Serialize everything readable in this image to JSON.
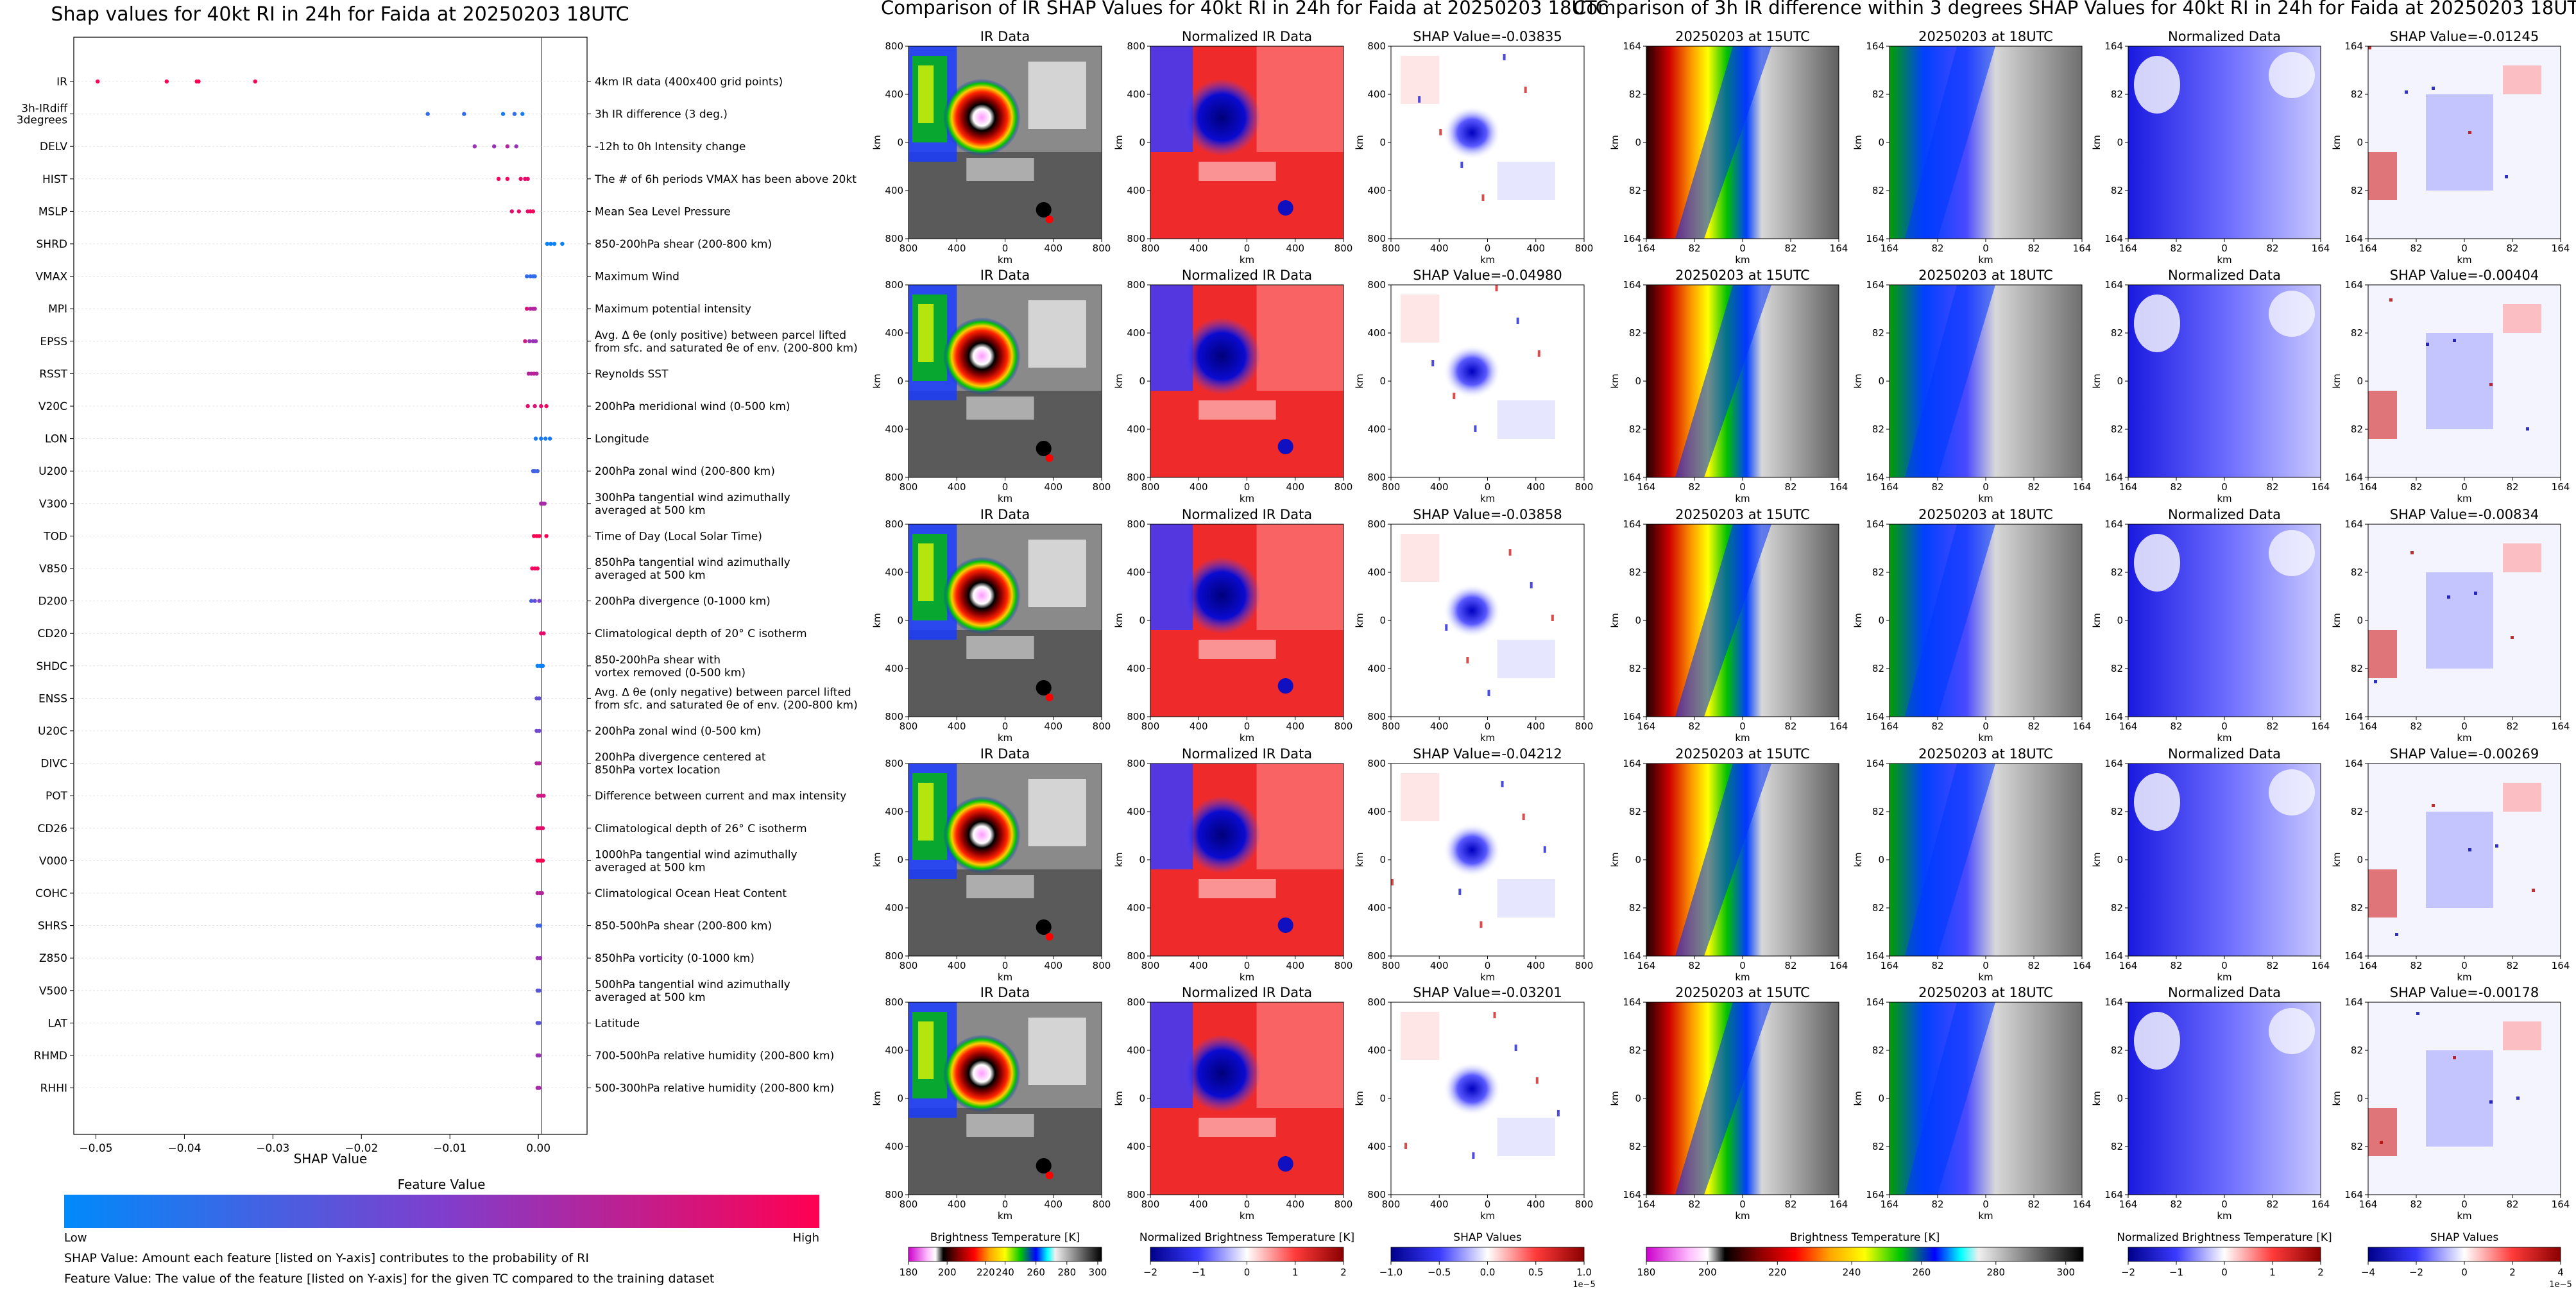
{
  "chart_data": [
    {
      "type": "scatter",
      "title": "Shap values for 40kt RI in 24h for Faida at 20250203 18UTC",
      "xlabel": "SHAP Value",
      "ylabel": "",
      "xlim": [
        -0.0525,
        0.0055
      ],
      "xticks": [
        -0.05,
        -0.04,
        -0.03,
        -0.02,
        -0.01,
        0.0
      ],
      "xtick_labels": [
        "−0.05",
        "−0.04",
        "−0.03",
        "−0.02",
        "−0.01",
        "0.00"
      ],
      "features": [
        {
          "name": "IR",
          "desc": "4km IR data (400x400 grid points)",
          "points": [
            {
              "x": -0.0498,
              "v": 1
            },
            {
              "x": -0.042,
              "v": 1
            },
            {
              "x": -0.0386,
              "v": 1
            },
            {
              "x": -0.0384,
              "v": 1
            },
            {
              "x": -0.032,
              "v": 1
            }
          ]
        },
        {
          "name": "3h-IRdiff\n3degrees",
          "desc": "3h IR difference (3 deg.)",
          "points": [
            {
              "x": -0.0125,
              "v": 0.2
            },
            {
              "x": -0.0084,
              "v": 0.2
            },
            {
              "x": -0.004,
              "v": 0.1
            },
            {
              "x": -0.0027,
              "v": 0.2
            },
            {
              "x": -0.0018,
              "v": 0.1
            }
          ]
        },
        {
          "name": "DELV",
          "desc": "-12h to 0h Intensity change",
          "points": [
            {
              "x": -0.0072,
              "v": 0.6
            },
            {
              "x": -0.005,
              "v": 0.6
            },
            {
              "x": -0.0035,
              "v": 0.7
            },
            {
              "x": -0.0025,
              "v": 0.6
            }
          ]
        },
        {
          "name": "HIST",
          "desc": "The # of 6h periods VMAX has been above 20kt",
          "points": [
            {
              "x": -0.0045,
              "v": 0.95
            },
            {
              "x": -0.0035,
              "v": 0.95
            },
            {
              "x": -0.002,
              "v": 0.9
            },
            {
              "x": -0.0015,
              "v": 0.9
            },
            {
              "x": -0.0012,
              "v": 0.9
            }
          ]
        },
        {
          "name": "MSLP",
          "desc": "Mean Sea Level Pressure",
          "points": [
            {
              "x": -0.003,
              "v": 0.9
            },
            {
              "x": -0.0022,
              "v": 0.9
            },
            {
              "x": -0.0012,
              "v": 0.9
            },
            {
              "x": -0.0009,
              "v": 0.95
            },
            {
              "x": -0.0006,
              "v": 0.95
            }
          ]
        },
        {
          "name": "SHRD",
          "desc": "850-200hPa shear (200-800 km)",
          "points": [
            {
              "x": 0.001,
              "v": 0.05
            },
            {
              "x": 0.0014,
              "v": 0.05
            },
            {
              "x": 0.0018,
              "v": 0.05
            },
            {
              "x": 0.0027,
              "v": 0.05
            }
          ]
        },
        {
          "name": "VMAX",
          "desc": "Maximum Wind",
          "points": [
            {
              "x": -0.0013,
              "v": 0.2
            },
            {
              "x": -0.0009,
              "v": 0.2
            },
            {
              "x": -0.0006,
              "v": 0.2
            },
            {
              "x": -0.0004,
              "v": 0.2
            }
          ]
        },
        {
          "name": "MPI",
          "desc": "Maximum potential intensity",
          "points": [
            {
              "x": -0.0013,
              "v": 0.85
            },
            {
              "x": -0.0009,
              "v": 0.7
            },
            {
              "x": -0.0006,
              "v": 0.7
            },
            {
              "x": -0.0004,
              "v": 0.7
            }
          ]
        },
        {
          "name": "EPSS",
          "desc": "Avg. Δ θe (only positive) between parcel lifted\nfrom sfc. and saturated θe of env. (200-800 km)",
          "points": [
            {
              "x": -0.0015,
              "v": 0.8
            },
            {
              "x": -0.001,
              "v": 0.6
            },
            {
              "x": -0.0006,
              "v": 0.6
            },
            {
              "x": -0.0003,
              "v": 0.6
            }
          ]
        },
        {
          "name": "RSST",
          "desc": "Reynolds SST",
          "points": [
            {
              "x": -0.0011,
              "v": 0.7
            },
            {
              "x": -0.0008,
              "v": 0.7
            },
            {
              "x": -0.0005,
              "v": 0.75
            },
            {
              "x": -0.0002,
              "v": 0.7
            }
          ]
        },
        {
          "name": "V20C",
          "desc": "200hPa meridional wind (0-500 km)",
          "points": [
            {
              "x": -0.0012,
              "v": 0.9
            },
            {
              "x": -0.0004,
              "v": 0.85
            },
            {
              "x": 0.0003,
              "v": 0.9
            },
            {
              "x": 0.0009,
              "v": 0.95
            }
          ]
        },
        {
          "name": "LON",
          "desc": "Longitude",
          "points": [
            {
              "x": -0.0003,
              "v": 0.1
            },
            {
              "x": 0.0003,
              "v": 0.1
            },
            {
              "x": 0.0008,
              "v": 0.1
            },
            {
              "x": 0.0013,
              "v": 0.1
            }
          ]
        },
        {
          "name": "U200",
          "desc": "200hPa zonal wind (200-800 km)",
          "points": [
            {
              "x": -0.0006,
              "v": 0.25
            },
            {
              "x": -0.0004,
              "v": 0.25
            },
            {
              "x": -0.0001,
              "v": 0.25
            }
          ]
        },
        {
          "name": "V300",
          "desc": "300hPa tangential wind azimuthally\naveraged at 500 km",
          "points": [
            {
              "x": 0.0003,
              "v": 0.65
            },
            {
              "x": 0.0005,
              "v": 0.65
            },
            {
              "x": 0.0007,
              "v": 0.65
            }
          ]
        },
        {
          "name": "TOD",
          "desc": "Time of Day (Local Solar Time)",
          "points": [
            {
              "x": -0.0005,
              "v": 1
            },
            {
              "x": -0.0002,
              "v": 1
            },
            {
              "x": 0.0001,
              "v": 1
            },
            {
              "x": 0.0009,
              "v": 1
            }
          ]
        },
        {
          "name": "V850",
          "desc": "850hPa tangential wind azimuthally\naveraged at 500 km",
          "points": [
            {
              "x": -0.0007,
              "v": 0.95
            },
            {
              "x": -0.0004,
              "v": 0.95
            },
            {
              "x": -0.0001,
              "v": 0.95
            }
          ]
        },
        {
          "name": "D200",
          "desc": "200hPa divergence (0-1000 km)",
          "points": [
            {
              "x": -0.0008,
              "v": 0.3
            },
            {
              "x": -0.0004,
              "v": 0.4
            },
            {
              "x": 0.0001,
              "v": 0.5
            }
          ]
        },
        {
          "name": "CD20",
          "desc": "Climatological depth of 20° C isotherm",
          "points": [
            {
              "x": 0.0003,
              "v": 0.9
            },
            {
              "x": 0.0006,
              "v": 0.9
            }
          ]
        },
        {
          "name": "SHDC",
          "desc": "850-200hPa shear with\nvortex removed (0-500 km)",
          "points": [
            {
              "x": -0.0001,
              "v": 0.05
            },
            {
              "x": 0.0002,
              "v": 0.05
            },
            {
              "x": 0.0005,
              "v": 0.05
            }
          ]
        },
        {
          "name": "ENSS",
          "desc": "Avg. Δ θe (only negative) between parcel lifted\nfrom sfc. and saturated θe of env. (200-800 km)",
          "points": [
            {
              "x": -0.0002,
              "v": 0.4
            },
            {
              "x": 0.0001,
              "v": 0.4
            }
          ]
        },
        {
          "name": "U20C",
          "desc": "200hPa zonal wind (0-500 km)",
          "points": [
            {
              "x": -0.0002,
              "v": 0.45
            },
            {
              "x": 0.0001,
              "v": 0.45
            }
          ]
        },
        {
          "name": "DIVC",
          "desc": "200hPa divergence centered at\n850hPa vortex location",
          "points": [
            {
              "x": -0.0002,
              "v": 0.7
            },
            {
              "x": 0.0001,
              "v": 0.7
            }
          ]
        },
        {
          "name": "POT",
          "desc": "Difference between current and max intensity",
          "points": [
            {
              "x": 0.0,
              "v": 0.8
            },
            {
              "x": 0.0003,
              "v": 0.8
            },
            {
              "x": 0.0006,
              "v": 0.8
            }
          ]
        },
        {
          "name": "CD26",
          "desc": "Climatological depth of 26° C isotherm",
          "points": [
            {
              "x": -0.0001,
              "v": 0.9
            },
            {
              "x": 0.0002,
              "v": 0.9
            },
            {
              "x": 0.0005,
              "v": 0.9
            }
          ]
        },
        {
          "name": "V000",
          "desc": "1000hPa tangential wind azimuthally\naveraged at 500 km",
          "points": [
            {
              "x": -0.0001,
              "v": 1
            },
            {
              "x": 0.0002,
              "v": 1
            },
            {
              "x": 0.0005,
              "v": 1
            }
          ]
        },
        {
          "name": "COHC",
          "desc": "Climatological Ocean Heat Content",
          "points": [
            {
              "x": -0.0001,
              "v": 0.7
            },
            {
              "x": 0.0002,
              "v": 0.7
            },
            {
              "x": 0.0004,
              "v": 0.7
            }
          ]
        },
        {
          "name": "SHRS",
          "desc": "850-500hPa shear (200-800 km)",
          "points": [
            {
              "x": -0.0001,
              "v": 0.25
            },
            {
              "x": 0.0002,
              "v": 0.25
            }
          ]
        },
        {
          "name": "Z850",
          "desc": "850hPa vorticity (0-1000 km)",
          "points": [
            {
              "x": -0.0001,
              "v": 0.6
            },
            {
              "x": 0.0002,
              "v": 0.6
            }
          ]
        },
        {
          "name": "V500",
          "desc": "500hPa tangential wind azimuthally\naveraged at 500 km",
          "points": [
            {
              "x": -0.0001,
              "v": 0.35
            },
            {
              "x": 0.0001,
              "v": 0.35
            }
          ]
        },
        {
          "name": "LAT",
          "desc": "Latitude",
          "points": [
            {
              "x": -0.0001,
              "v": 0.35
            },
            {
              "x": 0.0001,
              "v": 0.35
            }
          ]
        },
        {
          "name": "RHMD",
          "desc": "700-500hPa relative humidity (200-800 km)",
          "points": [
            {
              "x": -0.0001,
              "v": 0.6
            },
            {
              "x": 0.0001,
              "v": 0.6
            }
          ]
        },
        {
          "name": "RHHI",
          "desc": "500-300hPa relative humidity (200-800 km)",
          "points": [
            {
              "x": -0.0001,
              "v": 0.65
            },
            {
              "x": 0.0001,
              "v": 0.65
            }
          ]
        }
      ],
      "colorbar": {
        "label": "Feature Value",
        "low": "Low",
        "high": "High",
        "colors": [
          "#008afb",
          "#7f3ecd",
          "#ff0052"
        ]
      }
    },
    {
      "type": "heatmap",
      "title": "Comparison of IR SHAP Values for 40kt RI in 24h for Faida at 20250203 18UTC",
      "rows": 5,
      "columns": [
        {
          "titles": [
            "IR Data",
            "IR Data",
            "IR Data",
            "IR Data",
            "IR Data"
          ],
          "kind": "ir"
        },
        {
          "titles": [
            "Normalized IR Data",
            "Normalized IR Data",
            "Normalized IR Data",
            "Normalized IR Data",
            "Normalized IR Data"
          ],
          "kind": "norm"
        },
        {
          "titles": [
            "SHAP Value=-0.03835",
            "SHAP Value=-0.04980",
            "SHAP Value=-0.03858",
            "SHAP Value=-0.04212",
            "SHAP Value=-0.03201"
          ],
          "kind": "shap"
        }
      ],
      "axis_label": "km",
      "xticks": [
        "800",
        "400",
        "0",
        "400",
        "800"
      ],
      "yticks": [
        "800",
        "400",
        "0",
        "400",
        "800"
      ],
      "colorbars": [
        {
          "label": "Brightness Temperature [K]",
          "ticks": [
            "180",
            "200",
            "220",
            "240",
            "260",
            "280",
            "300"
          ],
          "kind": "ir"
        },
        {
          "label": "Normalized Brightness Temperature [K]",
          "ticks": [
            "−2",
            "−1",
            "0",
            "1",
            "2"
          ],
          "kind": "norm"
        },
        {
          "label": "SHAP Values",
          "ticks": [
            "−1.0",
            "−0.5",
            "0.0",
            "0.5",
            "1.0"
          ],
          "kind": "shap",
          "scale": "1e−5"
        }
      ]
    },
    {
      "type": "heatmap",
      "title": "Comparison of 3h IR difference within 3 degrees SHAP Values for 40kt RI in 24h for Faida at 20250203 18UTC",
      "rows": 5,
      "columns": [
        {
          "titles": [
            "20250203 at 15UTC",
            "20250203 at 15UTC",
            "20250203 at 15UTC",
            "20250203 at 15UTC",
            "20250203 at 15UTC"
          ],
          "kind": "ir15"
        },
        {
          "titles": [
            "20250203 at 18UTC",
            "20250203 at 18UTC",
            "20250203 at 18UTC",
            "20250203 at 18UTC",
            "20250203 at 18UTC"
          ],
          "kind": "ir18"
        },
        {
          "titles": [
            "Normalized Data",
            "Normalized Data",
            "Normalized Data",
            "Normalized Data",
            "Normalized Data"
          ],
          "kind": "ndiff"
        },
        {
          "titles": [
            "SHAP Value=-0.01245",
            "SHAP Value=-0.00404",
            "SHAP Value=-0.00834",
            "SHAP Value=-0.00269",
            "SHAP Value=-0.00178"
          ],
          "kind": "shap"
        }
      ],
      "axis_label": "km",
      "xticks": [
        "164",
        "82",
        "0",
        "82",
        "164"
      ],
      "yticks": [
        "164",
        "82",
        "0",
        "82",
        "164"
      ],
      "colorbars": [
        {
          "label": "Brightness Temperature [K]",
          "ticks": [
            "180",
            "200",
            "220",
            "240",
            "260",
            "280",
            "300"
          ],
          "kind": "ir"
        },
        {
          "label": "Normalized Brightness Temperature [K]",
          "ticks": [
            "−2",
            "−1",
            "0",
            "1",
            "2"
          ],
          "kind": "norm"
        },
        {
          "label": "SHAP Values",
          "ticks": [
            "−4",
            "−2",
            "0",
            "2",
            "4"
          ],
          "kind": "shap",
          "scale": "1e−5"
        }
      ]
    }
  ],
  "footnotes": {
    "shap": "SHAP Value: Amount each feature [listed on Y-axis] contributes to the probability of RI",
    "feature": "Feature Value: The value of the feature [listed on Y-axis] for the given TC compared to the training dataset"
  }
}
